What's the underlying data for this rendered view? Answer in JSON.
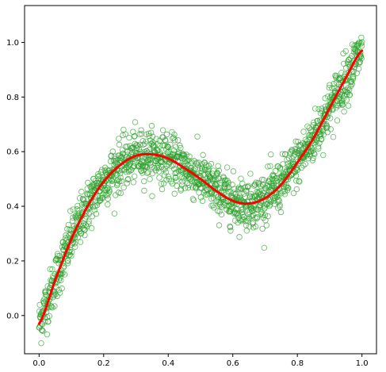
{
  "chart_data": {
    "type": "scatter",
    "title": "",
    "xlabel": "",
    "ylabel": "",
    "xlim": [
      -0.045,
      1.045
    ],
    "ylim": [
      -0.14,
      1.135
    ],
    "x_ticks": [
      "0.0",
      "0.2",
      "0.4",
      "0.6",
      "0.8",
      "1.0"
    ],
    "y_ticks": [
      "0.0",
      "0.2",
      "0.4",
      "0.6",
      "0.8",
      "1.0"
    ],
    "grid": false,
    "legend": "none",
    "series": [
      {
        "kind": "scatter",
        "marker": "hollow-circle",
        "color": "#2ca02c",
        "description": "noisy samples of the fitted curve, about 1500 points, vertical spread about ±0.09",
        "n_points": 1500,
        "noise": 0.045
      },
      {
        "kind": "line",
        "color": "#ff0000",
        "fit_points": [
          [
            0.0,
            -0.03
          ],
          [
            0.05,
            0.13
          ],
          [
            0.1,
            0.28
          ],
          [
            0.15,
            0.4
          ],
          [
            0.2,
            0.49
          ],
          [
            0.25,
            0.55
          ],
          [
            0.3,
            0.585
          ],
          [
            0.35,
            0.59
          ],
          [
            0.4,
            0.575
          ],
          [
            0.45,
            0.54
          ],
          [
            0.5,
            0.5
          ],
          [
            0.55,
            0.455
          ],
          [
            0.6,
            0.42
          ],
          [
            0.65,
            0.41
          ],
          [
            0.7,
            0.43
          ],
          [
            0.75,
            0.48
          ],
          [
            0.8,
            0.56
          ],
          [
            0.85,
            0.65
          ],
          [
            0.9,
            0.76
          ],
          [
            0.95,
            0.87
          ],
          [
            1.0,
            0.97
          ]
        ]
      }
    ]
  }
}
